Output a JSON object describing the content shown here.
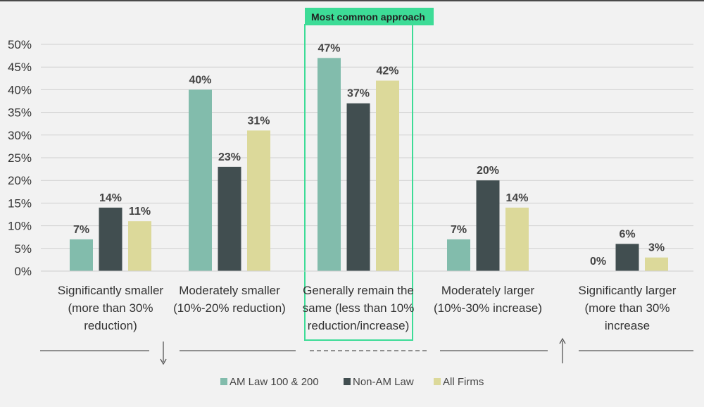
{
  "chart_data": {
    "type": "bar",
    "categories": [
      [
        "Significantly smaller",
        "(more than 30%",
        "reduction)"
      ],
      [
        "Moderately smaller",
        "(10%-20% reduction)"
      ],
      [
        "Generally remain the",
        "same (less than 10%",
        "reduction/increase)"
      ],
      [
        "Moderately larger",
        "(10%-30% increase)"
      ],
      [
        "Significantly larger",
        "(more than 30%",
        "increase"
      ]
    ],
    "series": [
      {
        "name": "AM Law 100 & 200",
        "color": "#82bcac",
        "values": [
          7,
          40,
          47,
          7,
          0
        ]
      },
      {
        "name": "Non-AM Law",
        "color": "#414e50",
        "values": [
          14,
          23,
          37,
          20,
          6
        ]
      },
      {
        "name": "All Firms",
        "color": "#dcd99a",
        "values": [
          11,
          31,
          42,
          14,
          3
        ]
      }
    ],
    "ylim": [
      0,
      50
    ],
    "yticks": [
      "0%",
      "5%",
      "10%",
      "15%",
      "20%",
      "25%",
      "30%",
      "35%",
      "40%",
      "45%",
      "50%"
    ],
    "value_suffix": "%",
    "grid": true,
    "legend": "bottom-center",
    "highlight": {
      "category_index": 2,
      "label": "Most common approach",
      "color": "#3ddc97"
    },
    "scale_arrows": {
      "left": "down",
      "right": "up"
    }
  }
}
